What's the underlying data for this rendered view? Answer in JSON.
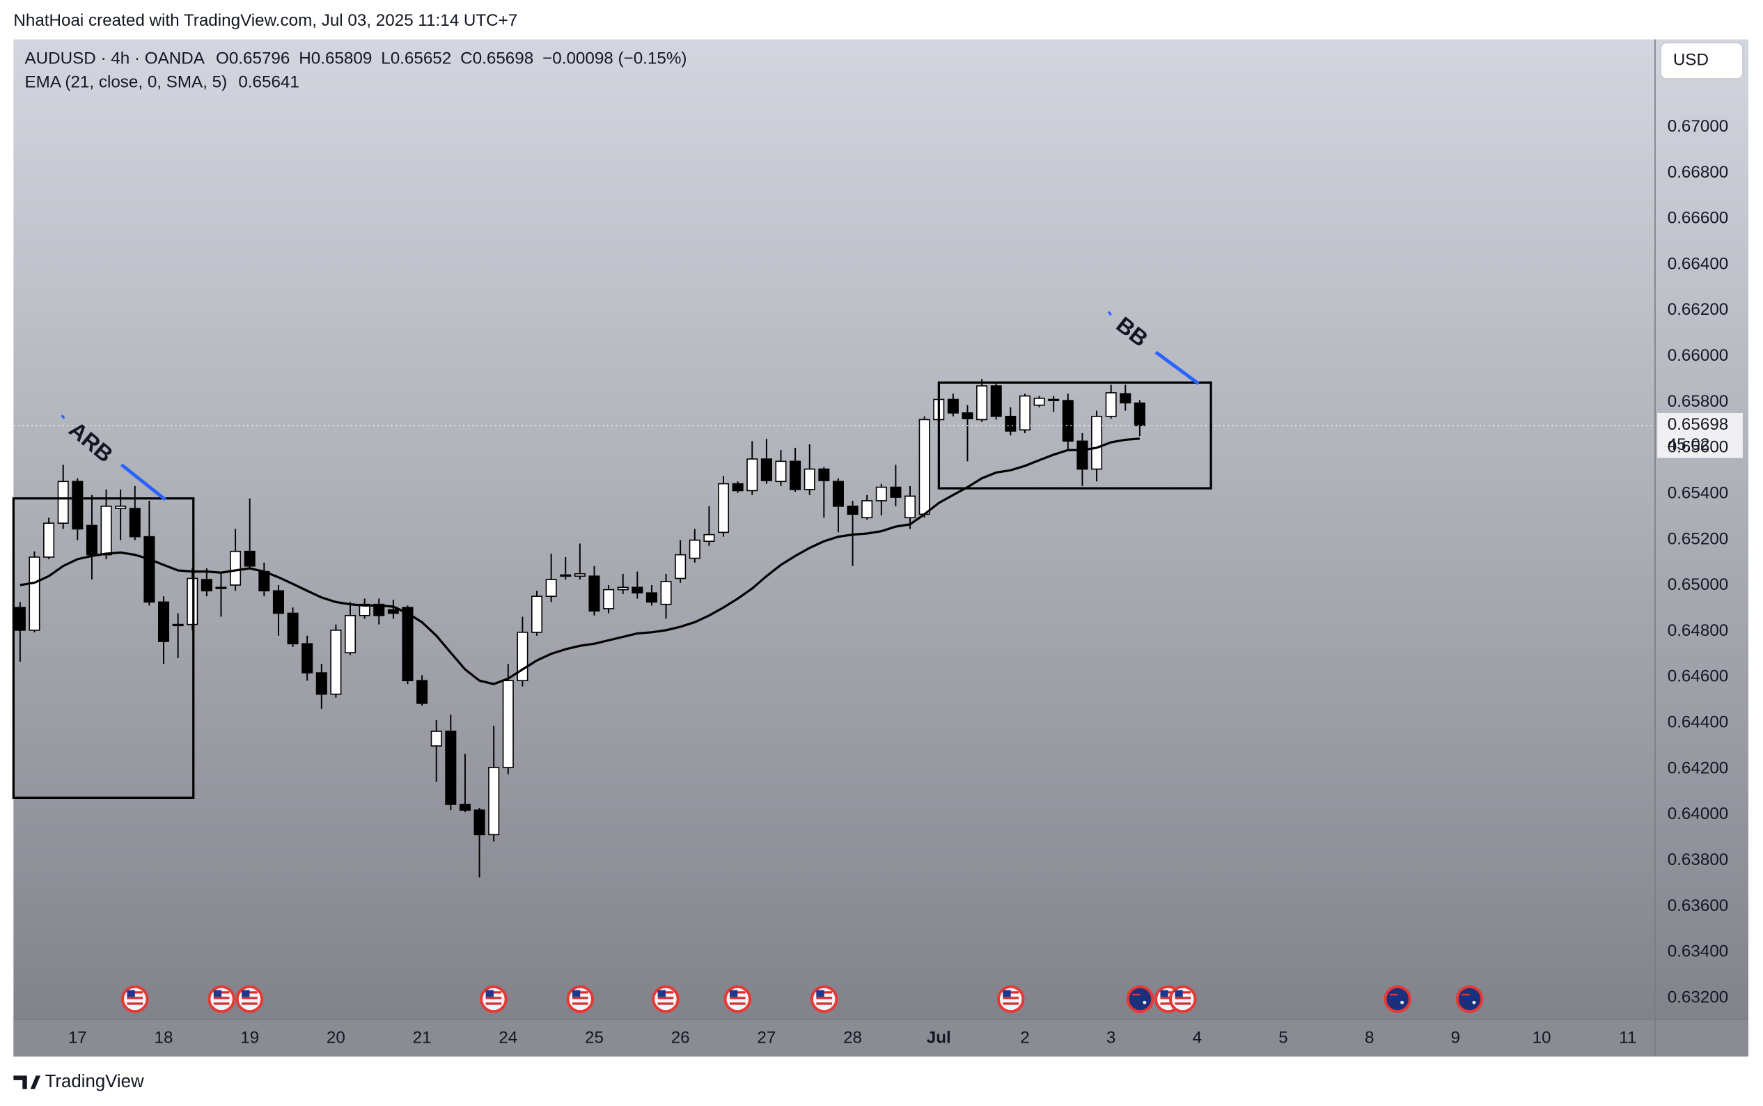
{
  "watermark": "NhatHoai created with TradingView.com, Jul 03, 2025 11:14 UTC+7",
  "footer_logo": "TradingView",
  "currency": "USD",
  "countdown": "45:02",
  "chart_data": {
    "type": "candlestick",
    "symbol": "AUDUSD · 4h · OANDA",
    "ohlc_prefixes": [
      "O",
      "H",
      "L",
      "C"
    ],
    "change": "−0.00098 (−0.15%)",
    "up_color": "#ffffff",
    "down_color": "#000000",
    "open": [
      0.64904,
      0.64805,
      0.65124,
      0.65272,
      0.65454,
      0.65262,
      0.65134,
      0.65336,
      0.65336,
      0.65213,
      0.64928,
      0.6483,
      0.6483,
      0.65026,
      0.64992,
      0.65002,
      0.65149,
      0.65061,
      0.64977,
      0.64879,
      0.64746,
      0.64619,
      0.64526,
      0.64707,
      0.64869,
      0.64918,
      0.64894,
      0.64904,
      0.64585,
      0.643,
      0.64364,
      0.64045,
      0.6402,
      0.63913,
      0.64206,
      0.64585,
      0.64796,
      0.64953,
      0.65041,
      0.65041,
      0.65041,
      0.64899,
      0.64982,
      0.64992,
      0.64968,
      0.64918,
      0.65031,
      0.65119,
      0.65193,
      0.65232,
      0.65444,
      0.65414,
      0.65552,
      0.65454,
      0.65542,
      0.65419,
      0.65508,
      0.65454,
      0.65346,
      0.65296,
      0.6537,
      0.65429,
      0.65296,
      0.65311,
      0.65724,
      0.65812,
      0.65753,
      0.65724,
      0.65871,
      0.65738,
      0.65679,
      0.65787,
      0.65812,
      0.65807,
      0.6563,
      0.65508,
      0.65738,
      0.65837,
      0.65796
    ],
    "high": [
      0.64928,
      0.65149,
      0.65296,
      0.65527,
      0.65468,
      0.65395,
      0.65419,
      0.65419,
      0.65434,
      0.6537,
      0.64953,
      0.64879,
      0.65075,
      0.65075,
      0.65051,
      0.65247,
      0.6538,
      0.651,
      0.65002,
      0.64904,
      0.64781,
      0.64658,
      0.6483,
      0.64928,
      0.64943,
      0.64943,
      0.64938,
      0.64913,
      0.64609,
      0.64413,
      0.64437,
      0.64265,
      0.6403,
      0.64388,
      0.64658,
      0.64864,
      0.64977,
      0.65139,
      0.65124,
      0.65183,
      0.65085,
      0.65002,
      0.65051,
      0.65061,
      0.65002,
      0.65051,
      0.65198,
      0.65247,
      0.65346,
      0.65478,
      0.65454,
      0.6563,
      0.6564,
      0.65591,
      0.65601,
      0.65616,
      0.65517,
      0.65468,
      0.6537,
      0.65395,
      0.65444,
      0.65527,
      0.65434,
      0.65738,
      0.65871,
      0.65837,
      0.65787,
      0.65901,
      0.65886,
      0.65778,
      0.65837,
      0.65827,
      0.65827,
      0.65837,
      0.65665,
      0.65763,
      0.65876,
      0.65876,
      0.65809
    ],
    "low": [
      0.64668,
      0.64796,
      0.65115,
      0.65247,
      0.65198,
      0.65026,
      0.65115,
      0.65198,
      0.65198,
      0.64913,
      0.64658,
      0.64683,
      0.64805,
      0.64953,
      0.64864,
      0.64977,
      0.65075,
      0.64953,
      0.64781,
      0.64732,
      0.64585,
      0.64462,
      0.64511,
      0.64697,
      0.64855,
      0.6483,
      0.64855,
      0.6457,
      0.64476,
      0.64143,
      0.6402,
      0.64011,
      0.63726,
      0.63883,
      0.64177,
      0.6456,
      0.64781,
      0.64928,
      0.65026,
      0.65026,
      0.64869,
      0.64879,
      0.64963,
      0.64943,
      0.64913,
      0.64855,
      0.65012,
      0.651,
      0.65173,
      0.65213,
      0.65404,
      0.65395,
      0.65444,
      0.65434,
      0.65409,
      0.65395,
      0.65296,
      0.65232,
      0.65085,
      0.65287,
      0.65306,
      0.65346,
      0.65247,
      0.65296,
      0.65689,
      0.65738,
      0.65542,
      0.65714,
      0.65724,
      0.65655,
      0.65665,
      0.65778,
      0.65758,
      0.65591,
      0.65434,
      0.65454,
      0.65728,
      0.65763,
      0.65652
    ],
    "close": [
      0.64805,
      0.65124,
      0.65272,
      0.65454,
      0.65247,
      0.65134,
      0.65346,
      0.65346,
      0.65213,
      0.64928,
      0.64756,
      0.64825,
      0.65031,
      0.64977,
      0.64987,
      0.65149,
      0.65085,
      0.64977,
      0.64879,
      0.64746,
      0.64619,
      0.64526,
      0.64805,
      0.64869,
      0.64918,
      0.64869,
      0.64879,
      0.64585,
      0.64486,
      0.64364,
      0.64045,
      0.6402,
      0.63913,
      0.64206,
      0.64585,
      0.64796,
      0.64953,
      0.65026,
      0.65046,
      0.65051,
      0.64889,
      0.64982,
      0.64992,
      0.64968,
      0.64928,
      0.65017,
      0.65134,
      0.65198,
      0.65222,
      0.65444,
      0.65414,
      0.65552,
      0.65458,
      0.65542,
      0.65419,
      0.65508,
      0.65458,
      0.65346,
      0.65311,
      0.6537,
      0.65429,
      0.65385,
      0.6539,
      0.65724,
      0.65812,
      0.65753,
      0.65728,
      0.65871,
      0.65738,
      0.65674,
      0.65827,
      0.65817,
      0.65807,
      0.6563,
      0.65508,
      0.65738,
      0.65841,
      0.65797,
      0.65698
    ],
    "series": [
      {
        "name": "EMA (21, close, 0, SMA, 5)",
        "color": "#000000",
        "values": [
          0.65002,
          0.65012,
          0.65041,
          0.65085,
          0.65115,
          0.65129,
          0.65139,
          0.65144,
          0.65134,
          0.65115,
          0.6509,
          0.65066,
          0.65061,
          0.65061,
          0.65056,
          0.65066,
          0.65075,
          0.65061,
          0.65036,
          0.65007,
          0.64977,
          0.64948,
          0.64928,
          0.64918,
          0.64913,
          0.64913,
          0.64908,
          0.64879,
          0.6484,
          0.64781,
          0.64707,
          0.64634,
          0.64585,
          0.6457,
          0.64594,
          0.64634,
          0.64673,
          0.64702,
          0.64722,
          0.64737,
          0.64746,
          0.64761,
          0.64776,
          0.64791,
          0.64796,
          0.64805,
          0.6482,
          0.6484,
          0.64869,
          0.64904,
          0.64943,
          0.64987,
          0.65041,
          0.6509,
          0.65129,
          0.65164,
          0.65193,
          0.65213,
          0.65222,
          0.65227,
          0.65237,
          0.65257,
          0.65267,
          0.65311,
          0.6536,
          0.65395,
          0.65429,
          0.65468,
          0.65493,
          0.65503,
          0.65522,
          0.65547,
          0.65571,
          0.65591,
          0.65591,
          0.65601,
          0.65625,
          0.65636,
          0.65641
        ]
      }
    ],
    "annotations": [
      "ARB",
      "BB"
    ],
    "xlim": [
      -0.46,
      113.9
    ],
    "xticks": [
      {
        "value": 4,
        "label": "17"
      },
      {
        "value": 10,
        "label": "18"
      },
      {
        "value": 16,
        "label": "19"
      },
      {
        "value": 22,
        "label": "20"
      },
      {
        "value": 28,
        "label": "21"
      },
      {
        "value": 34,
        "label": "24"
      },
      {
        "value": 40,
        "label": "25"
      },
      {
        "value": 46,
        "label": "26"
      },
      {
        "value": 52,
        "label": "27"
      },
      {
        "value": 58,
        "label": "28"
      },
      {
        "value": 64,
        "label": "Jul"
      },
      {
        "value": 70,
        "label": "2"
      },
      {
        "value": 76,
        "label": "3"
      },
      {
        "value": 82,
        "label": "4"
      },
      {
        "value": 88,
        "label": "5"
      },
      {
        "value": 94,
        "label": "8"
      },
      {
        "value": 100,
        "label": "9"
      },
      {
        "value": 106,
        "label": "10"
      },
      {
        "value": 112,
        "label": "11"
      }
    ],
    "ylim": [
      0.63107,
      0.67383
    ],
    "yticks": [
      {
        "value": 0.632,
        "label": "0.63200"
      },
      {
        "value": 0.634,
        "label": "0.63400"
      },
      {
        "value": 0.636,
        "label": "0.63600"
      },
      {
        "value": 0.638,
        "label": "0.63800"
      },
      {
        "value": 0.64,
        "label": "0.64000"
      },
      {
        "value": 0.642,
        "label": "0.64200"
      },
      {
        "value": 0.644,
        "label": "0.64400"
      },
      {
        "value": 0.646,
        "label": "0.64600"
      },
      {
        "value": 0.648,
        "label": "0.64800"
      },
      {
        "value": 0.65,
        "label": "0.65000"
      },
      {
        "value": 0.652,
        "label": "0.65200"
      },
      {
        "value": 0.654,
        "label": "0.65400"
      },
      {
        "value": 0.656,
        "label": "0.65600"
      },
      {
        "value": 0.658,
        "label": "0.65800"
      },
      {
        "value": 0.66,
        "label": "0.66000"
      },
      {
        "value": 0.662,
        "label": "0.66200"
      },
      {
        "value": 0.664,
        "label": "0.66400"
      },
      {
        "value": 0.666,
        "label": "0.66600"
      },
      {
        "value": 0.668,
        "label": "0.66800"
      },
      {
        "value": 0.67,
        "label": "0.67000"
      }
    ]
  }
}
